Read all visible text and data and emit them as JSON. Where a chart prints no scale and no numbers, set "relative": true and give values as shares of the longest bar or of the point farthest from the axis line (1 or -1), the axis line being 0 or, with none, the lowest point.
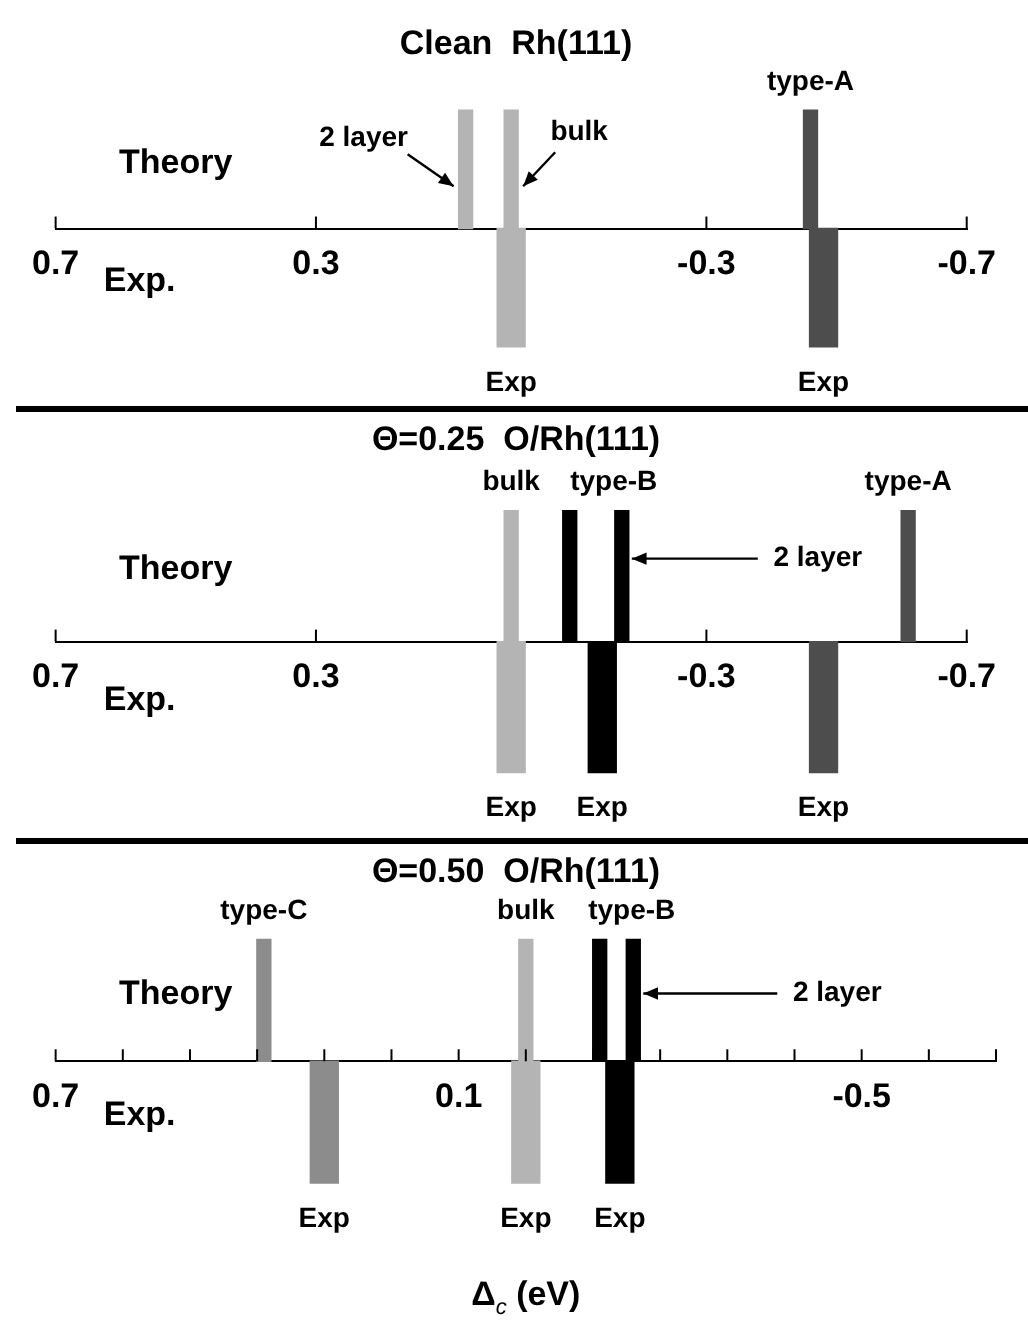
{
  "chart_data": [
    {
      "type": "bar",
      "title": "Clean  Rh(111)",
      "relative": true,
      "xlim": [
        0.7,
        -0.7
      ],
      "xticks": [
        0.7,
        0.3,
        -0.3,
        -0.7
      ],
      "series": [
        {
          "x": [
            0.07,
            0.0,
            -0.46
          ],
          "values": [
            1,
            1,
            1
          ],
          "colors": [
            "#b4b4b4",
            "#b4b4b4",
            "#4d4d4d"
          ]
        },
        {
          "x": [
            0.0,
            -0.48
          ],
          "values": [
            -1,
            -1
          ],
          "colors": [
            "#b4b4b4",
            "#4d4d4d"
          ]
        }
      ],
      "annotations": [
        "Theory",
        "Exp.",
        {
          "text": "2 layer",
          "x": 0.07,
          "y": 1
        },
        {
          "text": "bulk",
          "x": 0.0,
          "y": 1
        },
        {
          "text": "type-A",
          "x": -0.46,
          "y": 1
        },
        {
          "text": "Exp",
          "x": 0.0,
          "y": -1
        },
        {
          "text": "Exp",
          "x": -0.48,
          "y": -1
        }
      ]
    },
    {
      "type": "bar",
      "title": "Θ=0.25  O/Rh(111)",
      "relative": true,
      "xlim": [
        0.7,
        -0.7
      ],
      "xticks": [
        0.7,
        0.3,
        -0.3,
        -0.7
      ],
      "series": [
        {
          "x": [
            0.0,
            -0.09,
            -0.17,
            -0.61
          ],
          "values": [
            1,
            1,
            1,
            1
          ],
          "colors": [
            "#b4b4b4",
            "#000000",
            "#000000",
            "#4d4d4d"
          ]
        },
        {
          "x": [
            0.0,
            -0.14,
            -0.48
          ],
          "values": [
            -1,
            -1,
            -1
          ],
          "colors": [
            "#b4b4b4",
            "#000000",
            "#4d4d4d"
          ]
        }
      ],
      "annotations": [
        "Theory",
        "Exp.",
        {
          "text": "bulk",
          "x": 0.0,
          "y": 1
        },
        {
          "text": "type-B",
          "x": -0.09,
          "y": 1
        },
        {
          "text": "type-A",
          "x": -0.61,
          "y": 1
        },
        "2 layer",
        {
          "text": "Exp",
          "x": 0.0,
          "y": -1
        },
        {
          "text": "Exp",
          "x": -0.14,
          "y": -1
        },
        {
          "text": "Exp",
          "x": -0.48,
          "y": -1
        }
      ]
    },
    {
      "type": "bar",
      "title": "Θ=0.50  O/Rh(111)",
      "xlabel": "Δ$_{c}$ (eV)",
      "relative": true,
      "xlim": [
        0.7,
        -0.7
      ],
      "xticks": [
        0.7,
        {
          "value": 0.6,
          "label": null
        },
        {
          "value": 0.5,
          "label": null
        },
        {
          "value": 0.4,
          "label": null
        },
        {
          "value": 0.3,
          "label": null
        },
        {
          "value": 0.2,
          "label": null
        },
        0.1,
        {
          "value": 0.0,
          "label": null
        },
        {
          "value": -0.1,
          "label": null
        },
        {
          "value": -0.2,
          "label": null
        },
        {
          "value": -0.3,
          "label": null
        },
        {
          "value": -0.4,
          "label": null
        },
        -0.5,
        {
          "value": -0.6,
          "label": null
        },
        {
          "value": -0.7,
          "label": null
        }
      ],
      "series": [
        {
          "x": [
            0.39,
            0.0,
            -0.11,
            -0.16
          ],
          "values": [
            1,
            1,
            1,
            1
          ],
          "colors": [
            "#8c8c8c",
            "#b4b4b4",
            "#000000",
            "#000000"
          ]
        },
        {
          "x": [
            0.3,
            0.0,
            -0.14
          ],
          "values": [
            -1,
            -1,
            -1
          ],
          "colors": [
            "#8c8c8c",
            "#b4b4b4",
            "#000000"
          ]
        }
      ],
      "annotations": [
        "Theory",
        "Exp.",
        {
          "text": "type-C",
          "x": 0.39,
          "y": 1
        },
        {
          "text": "bulk",
          "x": 0.0,
          "y": 1
        },
        {
          "text": "type-B",
          "x": -0.11,
          "y": 1
        },
        "2 layer",
        {
          "text": "Exp",
          "x": 0.3,
          "y": -1
        },
        {
          "text": "Exp",
          "x": 0.0,
          "y": -1
        },
        {
          "text": "Exp",
          "x": -0.14,
          "y": -1
        }
      ]
    }
  ]
}
